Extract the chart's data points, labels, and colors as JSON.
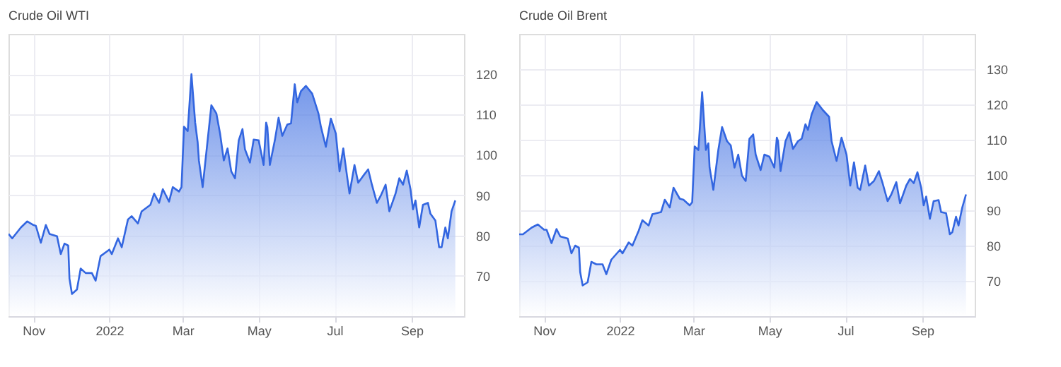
{
  "chart_data": [
    {
      "type": "area",
      "title": "Crude Oil WTI",
      "grid": true,
      "xlim": [
        "2021-10-12",
        "2022-10-13"
      ],
      "ylim": [
        60,
        130
      ],
      "yticks": [
        70,
        80,
        90,
        100,
        110,
        120
      ],
      "xticks": [
        {
          "value": "2021-11-01",
          "label": "Nov"
        },
        {
          "value": "2022-01-01",
          "label": "2022"
        },
        {
          "value": "2022-03-01",
          "label": "Mar"
        },
        {
          "value": "2022-05-01",
          "label": "May"
        },
        {
          "value": "2022-07-01",
          "label": "Jul"
        },
        {
          "value": "2022-09-01",
          "label": "Sep"
        }
      ],
      "x": [
        "2021-10-12",
        "2021-10-15",
        "2021-10-22",
        "2021-10-27",
        "2021-11-01",
        "2021-11-03",
        "2021-11-07",
        "2021-11-11",
        "2021-11-14",
        "2021-11-20",
        "2021-11-23",
        "2021-11-26",
        "2021-11-29",
        "2021-11-30",
        "2021-12-02",
        "2021-12-06",
        "2021-12-09",
        "2021-12-13",
        "2021-12-18",
        "2021-12-21",
        "2021-12-25",
        "2022-01-01",
        "2022-01-03",
        "2022-01-08",
        "2022-01-11",
        "2022-01-16",
        "2022-01-19",
        "2022-01-24",
        "2022-01-27",
        "2022-02-03",
        "2022-02-06",
        "2022-02-10",
        "2022-02-13",
        "2022-02-18",
        "2022-02-21",
        "2022-02-26",
        "2022-02-28",
        "2022-03-02",
        "2022-03-05",
        "2022-03-08",
        "2022-03-11",
        "2022-03-13",
        "2022-03-14",
        "2022-03-17",
        "2022-03-21",
        "2022-03-24",
        "2022-03-28",
        "2022-03-31",
        "2022-04-03",
        "2022-04-06",
        "2022-04-09",
        "2022-04-12",
        "2022-04-15",
        "2022-04-18",
        "2022-04-20",
        "2022-04-24",
        "2022-04-27",
        "2022-05-01",
        "2022-05-05",
        "2022-05-07",
        "2022-05-08",
        "2022-05-10",
        "2022-05-14",
        "2022-05-17",
        "2022-05-20",
        "2022-05-24",
        "2022-05-27",
        "2022-05-30",
        "2022-06-01",
        "2022-06-04",
        "2022-06-08",
        "2022-06-13",
        "2022-06-18",
        "2022-06-20",
        "2022-06-24",
        "2022-06-28",
        "2022-07-02",
        "2022-07-05",
        "2022-07-08",
        "2022-07-11",
        "2022-07-13",
        "2022-07-17",
        "2022-07-20",
        "2022-07-24",
        "2022-07-28",
        "2022-07-31",
        "2022-08-04",
        "2022-08-07",
        "2022-08-11",
        "2022-08-14",
        "2022-08-19",
        "2022-08-22",
        "2022-08-25",
        "2022-08-28",
        "2022-08-31",
        "2022-09-02",
        "2022-09-04",
        "2022-09-07",
        "2022-09-10",
        "2022-09-14",
        "2022-09-16",
        "2022-09-20",
        "2022-09-23",
        "2022-09-25",
        "2022-09-28",
        "2022-09-30",
        "2022-10-03",
        "2022-10-06"
      ],
      "series": [
        {
          "color": "#3366e0",
          "values": [
            80.4,
            79.3,
            82,
            83.5,
            82.6,
            82.4,
            78.2,
            82.6,
            80.4,
            79.8,
            75.4,
            78,
            77.5,
            69.3,
            65.5,
            66.6,
            71.8,
            70.7,
            70.7,
            68.8,
            74.9,
            76.5,
            75.4,
            79.3,
            77.1,
            84,
            84.8,
            83,
            86,
            87.6,
            90.4,
            88.1,
            91.5,
            88.4,
            92,
            90.9,
            92,
            107,
            105.9,
            120,
            108,
            103.1,
            98.6,
            92,
            103.6,
            112.3,
            110.3,
            105.3,
            98.6,
            101.6,
            95.9,
            94.2,
            103.6,
            106.4,
            101.4,
            98.1,
            103.8,
            103.6,
            97.5,
            108,
            106.9,
            97.5,
            103.6,
            109.2,
            104.7,
            107.5,
            107.8,
            117.5,
            113,
            115.8,
            117.1,
            115.2,
            110.3,
            107,
            102,
            109,
            105.3,
            95.9,
            101.6,
            94.8,
            90.4,
            97.5,
            93.1,
            94.8,
            96.4,
            92.6,
            88.1,
            89.8,
            92.6,
            86,
            90.4,
            94.2,
            92.6,
            96.1,
            91.5,
            86.5,
            88.7,
            82,
            87.6,
            88.1,
            85.4,
            83.7,
            77.1,
            77.1,
            82,
            79.3,
            86,
            88.7
          ]
        }
      ]
    },
    {
      "type": "area",
      "title": "Crude Oil Brent",
      "grid": true,
      "xlim": [
        "2021-10-12",
        "2022-10-13"
      ],
      "ylim": [
        60,
        140
      ],
      "yticks": [
        70,
        80,
        90,
        100,
        110,
        120,
        130
      ],
      "xticks": [
        {
          "value": "2021-11-01",
          "label": "Nov"
        },
        {
          "value": "2022-01-01",
          "label": "2022"
        },
        {
          "value": "2022-03-01",
          "label": "Mar"
        },
        {
          "value": "2022-05-01",
          "label": "May"
        },
        {
          "value": "2022-07-01",
          "label": "Jul"
        },
        {
          "value": "2022-09-01",
          "label": "Sep"
        }
      ],
      "x": [
        "2021-10-12",
        "2021-10-15",
        "2021-10-22",
        "2021-10-27",
        "2021-11-01",
        "2021-11-03",
        "2021-11-07",
        "2021-11-11",
        "2021-11-14",
        "2021-11-20",
        "2021-11-23",
        "2021-11-26",
        "2021-11-29",
        "2021-11-30",
        "2021-12-02",
        "2021-12-06",
        "2021-12-09",
        "2021-12-13",
        "2021-12-18",
        "2021-12-21",
        "2021-12-25",
        "2022-01-01",
        "2022-01-03",
        "2022-01-08",
        "2022-01-11",
        "2022-01-16",
        "2022-01-19",
        "2022-01-24",
        "2022-01-27",
        "2022-02-03",
        "2022-02-06",
        "2022-02-10",
        "2022-02-13",
        "2022-02-18",
        "2022-02-21",
        "2022-02-26",
        "2022-02-28",
        "2022-03-02",
        "2022-03-05",
        "2022-03-08",
        "2022-03-11",
        "2022-03-13",
        "2022-03-14",
        "2022-03-17",
        "2022-03-21",
        "2022-03-24",
        "2022-03-28",
        "2022-03-31",
        "2022-04-03",
        "2022-04-06",
        "2022-04-09",
        "2022-04-12",
        "2022-04-15",
        "2022-04-18",
        "2022-04-20",
        "2022-04-24",
        "2022-04-27",
        "2022-05-01",
        "2022-05-05",
        "2022-05-07",
        "2022-05-08",
        "2022-05-10",
        "2022-05-14",
        "2022-05-17",
        "2022-05-20",
        "2022-05-24",
        "2022-05-27",
        "2022-05-30",
        "2022-06-01",
        "2022-06-04",
        "2022-06-08",
        "2022-06-13",
        "2022-06-18",
        "2022-06-20",
        "2022-06-24",
        "2022-06-28",
        "2022-07-02",
        "2022-07-05",
        "2022-07-08",
        "2022-07-11",
        "2022-07-13",
        "2022-07-17",
        "2022-07-20",
        "2022-07-24",
        "2022-07-28",
        "2022-07-31",
        "2022-08-04",
        "2022-08-07",
        "2022-08-11",
        "2022-08-14",
        "2022-08-19",
        "2022-08-22",
        "2022-08-25",
        "2022-08-28",
        "2022-08-31",
        "2022-09-02",
        "2022-09-04",
        "2022-09-07",
        "2022-09-10",
        "2022-09-14",
        "2022-09-16",
        "2022-09-20",
        "2022-09-23",
        "2022-09-25",
        "2022-09-28",
        "2022-09-30",
        "2022-10-03",
        "2022-10-06"
      ],
      "series": [
        {
          "color": "#3366e0",
          "values": [
            83.2,
            83.2,
            85.1,
            86,
            84.5,
            84.5,
            80.7,
            84.7,
            82.6,
            82,
            77.8,
            80,
            79.4,
            72.5,
            68.7,
            69.6,
            75.4,
            74.7,
            74.7,
            71.9,
            76,
            78.8,
            77.8,
            80.9,
            80,
            84.2,
            87.2,
            85.7,
            88.9,
            89.5,
            93,
            90.8,
            96.4,
            93.3,
            93,
            91.4,
            92.3,
            108.1,
            107.1,
            123.5,
            107.1,
            109,
            102.1,
            95.8,
            107.1,
            113.6,
            109.6,
            108.4,
            102.1,
            105.8,
            99.8,
            98.3,
            110.3,
            111.5,
            105.8,
            101.4,
            105.8,
            105.2,
            102.1,
            110.6,
            109.6,
            101.1,
            109.6,
            112.1,
            107.4,
            109.6,
            110.3,
            114.4,
            112.8,
            117.2,
            120.7,
            118.4,
            116.5,
            109.6,
            104,
            110.6,
            105.8,
            97,
            103.6,
            96.4,
            95.8,
            102.7,
            97,
            98.3,
            101.1,
            97.7,
            92.6,
            94.5,
            98,
            92,
            97,
            98.9,
            97.7,
            100.8,
            96.4,
            91.4,
            93.9,
            87.6,
            92.6,
            92.9,
            89.5,
            89.2,
            83.2,
            83.8,
            88.2,
            85.7,
            90.8,
            94.5
          ]
        }
      ]
    }
  ]
}
